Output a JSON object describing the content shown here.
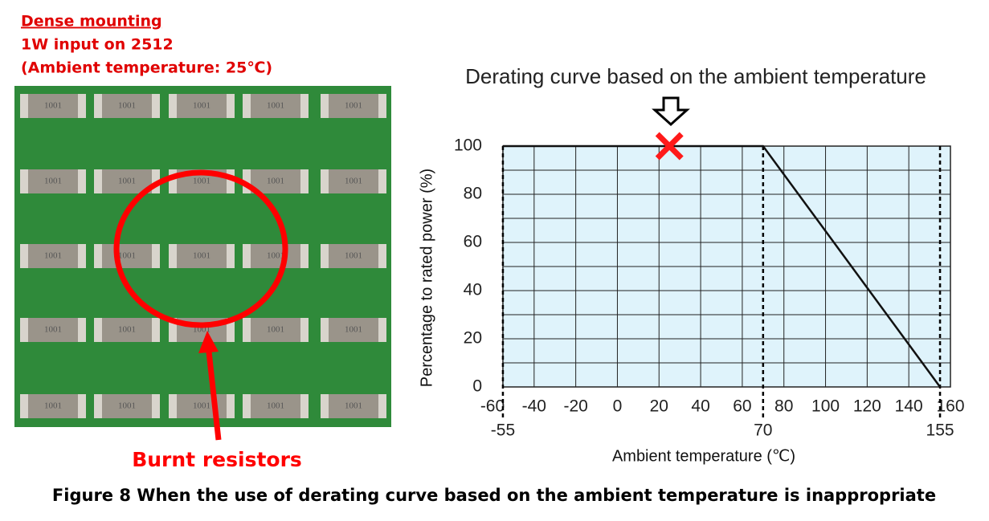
{
  "photo": {
    "notes": [
      "Dense mounting",
      "1W input on 2512",
      "(Ambient temperature: 25℃)"
    ],
    "resistor_marking": "1001",
    "callout": "Burnt resistors"
  },
  "chart_data": {
    "type": "line",
    "title": "Derating curve based on the ambient temperature",
    "x_label": "Ambient temperature (℃)",
    "y_label": "Percentage to rated power (%)",
    "x": [
      -55,
      70,
      155
    ],
    "values": [
      100,
      100,
      0
    ],
    "color": "#111111",
    "xlim": [
      -60,
      160
    ],
    "xticks": [
      -60,
      -40,
      -20,
      0,
      20,
      40,
      60,
      80,
      100,
      120,
      140,
      160
    ],
    "ylim": [
      0,
      100
    ],
    "yticks": [
      0,
      20,
      40,
      60,
      80,
      100
    ],
    "ygrid": [
      0,
      10,
      20,
      30,
      40,
      50,
      60,
      70,
      80,
      90,
      100
    ],
    "reference_lines": [
      -55,
      70,
      155
    ],
    "marker": {
      "x": 25,
      "y": 100,
      "color": "#ff1a1a"
    },
    "background": "#dff3fb",
    "grid": true
  },
  "caption": "Figure 8  When the use of derating curve based on the ambient temperature is inappropriate"
}
